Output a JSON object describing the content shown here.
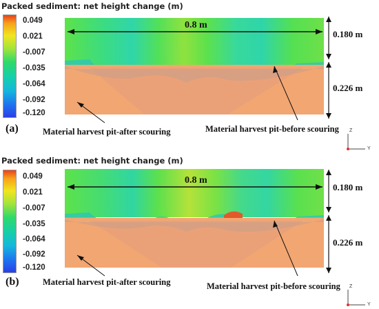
{
  "panels": [
    {
      "letter": "(a)",
      "title": "Packed sediment: net height change (m)",
      "colorbar_ticks": [
        "0.049",
        "0.021",
        "-0.007",
        "-0.035",
        "-0.064",
        "-0.092",
        "-0.120"
      ],
      "width_label": "0.8 m",
      "water_depth_label": "0.180 m",
      "sediment_depth_label": "0.226 m",
      "after_label": "Material harvest pit-after scouring",
      "before_label": "Material harvest pit-before scouring",
      "axes": {
        "z": "Z",
        "y": "Y"
      }
    },
    {
      "letter": "(b)",
      "title": "Packed sediment: net height change (m)",
      "colorbar_ticks": [
        "0.049",
        "0.021",
        "-0.007",
        "-0.035",
        "-0.064",
        "-0.092",
        "-0.120"
      ],
      "width_label": "0.8 m",
      "water_depth_label": "0.180 m",
      "sediment_depth_label": "0.226 m",
      "after_label": "Material harvest pit-after scouring",
      "before_label": "Material harvest pit-before scouring",
      "axes": {
        "z": "Z",
        "y": "Y"
      }
    }
  ],
  "colors": {
    "sediment": "#f2a672",
    "water_green": "#58e04a",
    "water_cyan": "#3ad6a8",
    "water_yellow": "#cde33c",
    "deposit_red": "#e25a2a"
  }
}
